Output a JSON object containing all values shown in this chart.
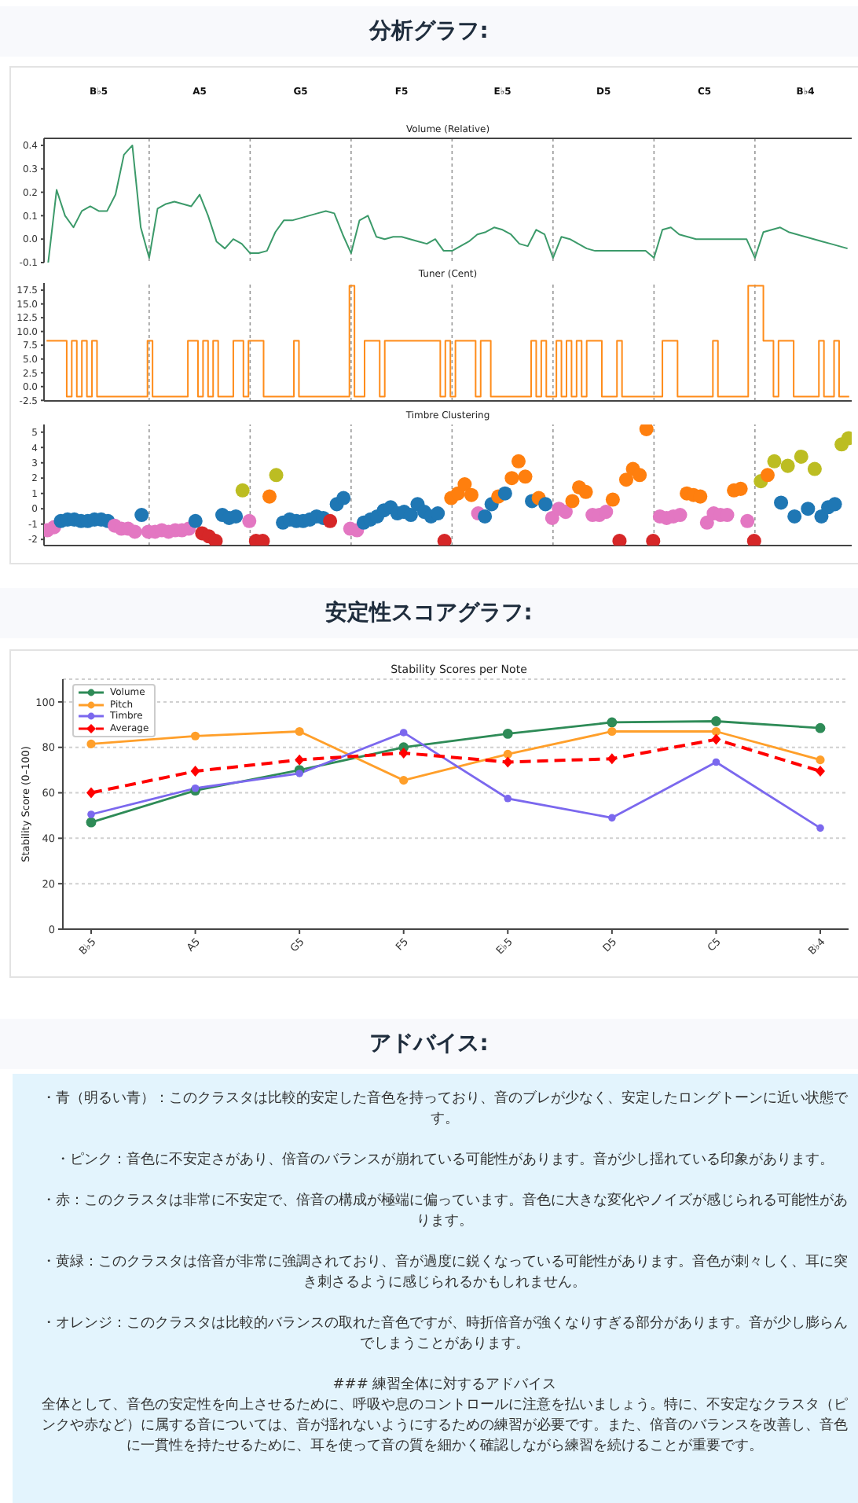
{
  "chart_data": [
    {
      "type": "line",
      "title": "Volume (Relative)",
      "annotations": [
        "分析グラフ:"
      ],
      "grid": "x",
      "categories": [
        null,
        null,
        null,
        null,
        null,
        null,
        "B♭5",
        null,
        null,
        null,
        null,
        null,
        null,
        null,
        null,
        null,
        null,
        null,
        "A5",
        null,
        null,
        null,
        null,
        null,
        null,
        null,
        null,
        null,
        null,
        null,
        "G5",
        null,
        null,
        null,
        null,
        null,
        null,
        null,
        null,
        null,
        null,
        null,
        "F5",
        null,
        null,
        null,
        null,
        null,
        null,
        null,
        null,
        null,
        null,
        null,
        "E♭5",
        null,
        null,
        null,
        null,
        null,
        null,
        null,
        null,
        null,
        null,
        null,
        "D5",
        null,
        null,
        null,
        null,
        null,
        null,
        null,
        null,
        null,
        null,
        null,
        "C5",
        null,
        null,
        null,
        null,
        null,
        null,
        null,
        null,
        null,
        null,
        null,
        "B♭4",
        null,
        null,
        null,
        null,
        null
      ],
      "ylim": [
        -0.1,
        0.43
      ],
      "yticks": [
        {
          "value": -0.1,
          "label": "-0.1"
        },
        {
          "value": 0,
          "label": "0.0"
        },
        {
          "value": 0.1,
          "label": "0.1"
        },
        {
          "value": 0.2,
          "label": "0.2"
        },
        {
          "value": 0.3,
          "label": "0.3"
        },
        {
          "value": 0.4,
          "label": "0.4"
        }
      ],
      "series": [
        {
          "color": "#3c9a6a",
          "values": [
            -0.1,
            0.21,
            0.1,
            0.05,
            0.12,
            0.14,
            0.12,
            0.12,
            0.19,
            0.36,
            0.4,
            0.05,
            -0.08,
            0.13,
            0.15,
            0.16,
            0.15,
            0.14,
            0.19,
            0.1,
            -0.01,
            -0.04,
            0.0,
            -0.02,
            -0.06,
            -0.06,
            -0.05,
            0.03,
            0.08,
            0.08,
            0.09,
            0.1,
            0.11,
            0.12,
            0.11,
            0.02,
            -0.06,
            0.08,
            0.1,
            0.01,
            0.0,
            0.01,
            0.01,
            0.0,
            -0.01,
            -0.02,
            0.0,
            -0.05,
            -0.05,
            -0.03,
            -0.01,
            0.02,
            0.03,
            0.05,
            0.04,
            0.02,
            -0.02,
            -0.03,
            0.04,
            0.02,
            -0.08,
            0.01,
            0.0,
            -0.02,
            -0.04,
            -0.05,
            -0.05,
            -0.05,
            -0.05,
            -0.05,
            -0.05,
            -0.05,
            -0.08,
            0.04,
            0.05,
            0.02,
            0.01,
            0.0,
            0.0,
            0.0,
            0.0,
            0.0,
            0.0,
            0.0,
            -0.08,
            0.03,
            0.04,
            0.05,
            0.03,
            0.02,
            0.01,
            0.0,
            -0.01,
            -0.02,
            -0.03,
            -0.04
          ]
        }
      ]
    },
    {
      "type": "step",
      "title": "Tuner (Cent)",
      "grid": "x",
      "tick_labels": "y",
      "categories": [
        null,
        null,
        null,
        null,
        null,
        null,
        null,
        null,
        null,
        null,
        null,
        null,
        null,
        null,
        null,
        null,
        null,
        null,
        null,
        null,
        null,
        null,
        null,
        null,
        null,
        null,
        null,
        null,
        null,
        null,
        null,
        null,
        null,
        null,
        null,
        null,
        null,
        null,
        null,
        null,
        null,
        null,
        null,
        null,
        null,
        null,
        null,
        null,
        null,
        null,
        null,
        null,
        null,
        null,
        null,
        null,
        null,
        null,
        null,
        null,
        null,
        null,
        null,
        null,
        null,
        null,
        null,
        null,
        null,
        null,
        null,
        null,
        null,
        null,
        null,
        null,
        null,
        null,
        null,
        null,
        null,
        null,
        null,
        null,
        null,
        null,
        null,
        null,
        null,
        null,
        null,
        null,
        null,
        null,
        null,
        null,
        null,
        null,
        null,
        null,
        null,
        null,
        null,
        null,
        null,
        null,
        null,
        null,
        null,
        null,
        null,
        null,
        null,
        null,
        null,
        null,
        null,
        null,
        null,
        null,
        null,
        null,
        null,
        null,
        null,
        null,
        null,
        null,
        null,
        null,
        null,
        null,
        null,
        null,
        null,
        null,
        null,
        null,
        null,
        null,
        null,
        null,
        null,
        null,
        null,
        null,
        null,
        null,
        null,
        null,
        null,
        null,
        null,
        null,
        null,
        null,
        null,
        null,
        null,
        null
      ],
      "ylim": [
        -2.6,
        18.8
      ],
      "yticks": [
        {
          "value": -2.5,
          "label": "-2.5"
        },
        {
          "value": 0,
          "label": "0.0"
        },
        {
          "value": 2.5,
          "label": "2.5"
        },
        {
          "value": 5,
          "label": "5.0"
        },
        {
          "value": 7.5,
          "label": "7.5"
        },
        {
          "value": 10,
          "label": "10.0"
        },
        {
          "value": 12.5,
          "label": "12.5"
        },
        {
          "value": 15,
          "label": "15.0"
        },
        {
          "value": 17.5,
          "label": "17.5"
        }
      ],
      "series": [
        {
          "color": "#ff8c1a",
          "values": [
            8.3,
            8.3,
            8.3,
            8.3,
            -1.8,
            8.3,
            -1.8,
            8.3,
            -1.8,
            8.3,
            -1.8,
            -1.8,
            -1.8,
            -1.8,
            -1.8,
            -1.8,
            -1.8,
            -1.8,
            -1.8,
            -1.8,
            8.3,
            -1.8,
            -1.8,
            -1.8,
            -1.8,
            -1.8,
            -1.8,
            -1.8,
            8.3,
            8.3,
            -1.8,
            8.3,
            -1.8,
            8.3,
            -1.8,
            -1.8,
            -1.8,
            8.3,
            8.3,
            -1.8,
            8.3,
            8.3,
            8.3,
            -1.8,
            -1.8,
            -1.8,
            -1.8,
            -1.8,
            -1.8,
            8.3,
            -1.8,
            -1.8,
            -1.8,
            -1.8,
            -1.8,
            -1.8,
            -1.8,
            -1.8,
            -1.8,
            -1.8,
            18.3,
            -1.8,
            -1.8,
            8.3,
            8.3,
            8.3,
            -1.8,
            8.3,
            8.3,
            8.3,
            8.3,
            8.3,
            8.3,
            8.3,
            8.3,
            8.3,
            8.3,
            8.3,
            -1.8,
            8.3,
            -1.8,
            8.3,
            8.3,
            8.3,
            8.3,
            -1.8,
            8.3,
            8.3,
            -1.8,
            -1.8,
            -1.8,
            -1.8,
            -1.8,
            -1.8,
            -1.8,
            -1.8,
            8.3,
            -1.8,
            8.3,
            -1.8,
            -1.8,
            8.3,
            -1.8,
            8.3,
            -1.8,
            8.3,
            -1.8,
            8.3,
            8.3,
            8.3,
            -1.8,
            -1.8,
            -1.8,
            8.3,
            -1.8,
            -1.8,
            -1.8,
            -1.8,
            -1.8,
            -1.8,
            -1.8,
            -1.8,
            8.3,
            8.3,
            8.3,
            -1.8,
            -1.8,
            -1.8,
            -1.8,
            -1.8,
            -1.8,
            -1.8,
            8.3,
            -1.8,
            -1.8,
            -1.8,
            -1.8,
            -1.8,
            -1.8,
            18.3,
            18.3,
            18.3,
            8.3,
            8.3,
            -1.8,
            8.3,
            8.3,
            8.3,
            -1.8,
            -1.8,
            -1.8,
            -1.8,
            -1.8,
            8.3,
            -1.8,
            -1.8,
            8.3,
            -1.8,
            -1.8,
            -1.8
          ]
        }
      ]
    },
    {
      "type": "scatter",
      "title": "Timbre Clustering",
      "grid": "x",
      "tick_labels": "y",
      "categories": [
        null,
        null,
        null,
        null,
        null,
        null,
        null,
        null,
        null,
        null,
        null,
        null,
        null,
        null,
        null,
        null,
        null,
        null,
        null,
        null,
        null,
        null,
        null,
        null,
        null,
        null,
        null,
        null,
        null,
        null,
        null,
        null,
        null,
        null,
        null,
        null,
        null,
        null,
        null,
        null,
        null,
        null,
        null,
        null,
        null,
        null,
        null,
        null,
        null,
        null,
        null,
        null,
        null,
        null,
        null,
        null,
        null,
        null,
        null,
        null,
        null,
        null,
        null,
        null,
        null,
        null,
        null,
        null,
        null,
        null,
        null,
        null,
        null,
        null,
        null,
        null,
        null,
        null,
        null,
        null,
        null,
        null,
        null,
        null,
        null,
        null,
        null,
        null,
        null,
        null,
        null,
        null,
        null,
        null,
        null,
        null,
        null,
        null,
        null,
        null,
        null,
        null,
        null,
        null,
        null,
        null,
        null,
        null,
        null,
        null,
        null,
        null,
        null,
        null,
        null,
        null,
        null,
        null,
        null,
        null
      ],
      "ylim": [
        -2.4,
        5.5
      ],
      "yticks": [
        -2,
        -1,
        0,
        1,
        2,
        3,
        4,
        5
      ],
      "series": [
        {
          "values": [
            -1.4,
            -1.2,
            -0.8,
            -0.7,
            -0.7,
            -0.8,
            -0.8,
            -0.7,
            -0.7,
            -0.8,
            -1.1,
            -1.3,
            -1.3,
            -1.5,
            -0.4,
            -1.5,
            -1.5,
            -1.4,
            -1.5,
            -1.4,
            -1.4,
            -1.3,
            -0.8,
            -1.6,
            -1.8,
            -2.1,
            -0.4,
            -0.6,
            -0.5,
            1.2,
            -0.8,
            -2.1,
            -2.1,
            0.8,
            2.2,
            -0.9,
            -0.7,
            -0.8,
            -0.8,
            -0.7,
            -0.5,
            -0.6,
            -0.8,
            0.3,
            0.7,
            -1.3,
            -1.4,
            -0.9,
            -0.7,
            -0.5,
            -0.1,
            0.1,
            -0.3,
            -0.2,
            -0.4,
            0.3,
            -0.2,
            -0.5,
            -0.3,
            -2.1,
            0.7,
            1.0,
            1.6,
            0.9,
            -0.3,
            -0.5,
            0.3,
            0.8,
            1.0,
            2.0,
            3.1,
            2.1,
            0.5,
            0.7,
            0.3,
            -0.6,
            0.0,
            -0.2,
            0.5,
            1.4,
            1.1,
            -0.4,
            -0.4,
            -0.2,
            0.6,
            -2.1,
            1.9,
            2.6,
            2.2,
            5.2,
            -2.1,
            -0.5,
            -0.6,
            -0.5,
            -0.4,
            1.0,
            0.9,
            0.8,
            -0.9,
            -0.3,
            -0.4,
            -0.4,
            1.2,
            1.3,
            -0.8,
            -2.1,
            1.8,
            2.2,
            3.1,
            0.4,
            2.8,
            -0.5,
            3.4,
            0.0,
            2.6,
            -0.5,
            0.1,
            0.3,
            4.2,
            4.6
          ],
          "colors": [
            "#e377c2",
            "#e377c2",
            "#1f77b4",
            "#1f77b4",
            "#1f77b4",
            "#1f77b4",
            "#1f77b4",
            "#1f77b4",
            "#1f77b4",
            "#1f77b4",
            "#e377c2",
            "#e377c2",
            "#e377c2",
            "#e377c2",
            "#1f77b4",
            "#e377c2",
            "#e377c2",
            "#e377c2",
            "#e377c2",
            "#e377c2",
            "#e377c2",
            "#e377c2",
            "#1f77b4",
            "#d62728",
            "#d62728",
            "#d62728",
            "#1f77b4",
            "#1f77b4",
            "#1f77b4",
            "#bcbd22",
            "#e377c2",
            "#d62728",
            "#d62728",
            "#ff7f0e",
            "#bcbd22",
            "#1f77b4",
            "#1f77b4",
            "#1f77b4",
            "#1f77b4",
            "#1f77b4",
            "#1f77b4",
            "#1f77b4",
            "#d62728",
            "#1f77b4",
            "#1f77b4",
            "#e377c2",
            "#e377c2",
            "#1f77b4",
            "#1f77b4",
            "#1f77b4",
            "#1f77b4",
            "#1f77b4",
            "#1f77b4",
            "#1f77b4",
            "#1f77b4",
            "#1f77b4",
            "#1f77b4",
            "#1f77b4",
            "#1f77b4",
            "#d62728",
            "#ff7f0e",
            "#ff7f0e",
            "#ff7f0e",
            "#ff7f0e",
            "#e377c2",
            "#1f77b4",
            "#1f77b4",
            "#ff7f0e",
            "#1f77b4",
            "#ff7f0e",
            "#ff7f0e",
            "#ff7f0e",
            "#1f77b4",
            "#ff7f0e",
            "#1f77b4",
            "#e377c2",
            "#e377c2",
            "#e377c2",
            "#ff7f0e",
            "#ff7f0e",
            "#ff7f0e",
            "#e377c2",
            "#e377c2",
            "#e377c2",
            "#ff7f0e",
            "#d62728",
            "#ff7f0e",
            "#ff7f0e",
            "#ff7f0e",
            "#ff7f0e",
            "#d62728",
            "#e377c2",
            "#e377c2",
            "#e377c2",
            "#e377c2",
            "#ff7f0e",
            "#ff7f0e",
            "#ff7f0e",
            "#e377c2",
            "#e377c2",
            "#e377c2",
            "#e377c2",
            "#ff7f0e",
            "#ff7f0e",
            "#e377c2",
            "#d62728",
            "#bcbd22",
            "#ff7f0e",
            "#bcbd22",
            "#1f77b4",
            "#bcbd22",
            "#1f77b4",
            "#bcbd22",
            "#1f77b4",
            "#bcbd22",
            "#1f77b4",
            "#1f77b4",
            "#1f77b4",
            "#bcbd22",
            "#bcbd22"
          ]
        }
      ]
    },
    {
      "type": "line",
      "title": "Stability Scores per Note",
      "annotations": [
        "安定性スコアグラフ:"
      ],
      "ylabel": "Stability Score (0–100)",
      "categories": [
        "B♭5",
        "A5",
        "G5",
        "F5",
        "E♭5",
        "D5",
        "C5",
        "B♭4"
      ],
      "ylim": [
        0,
        110
      ],
      "yticks": [
        0,
        20,
        40,
        60,
        80,
        100
      ],
      "grid": "y",
      "legend": "top left",
      "marker": "circle",
      "series": [
        {
          "name": "Volume",
          "color": "#2e8b57",
          "values": [
            47,
            61,
            70,
            80,
            86,
            91,
            91.5,
            88.5
          ]
        },
        {
          "name": "Pitch",
          "color": "#ff9f2a",
          "values": [
            81.5,
            85,
            87,
            65.5,
            77,
            87,
            87,
            74.5
          ]
        },
        {
          "name": "Timbre",
          "color": "#7b68ee",
          "values": [
            50.5,
            62,
            68.5,
            86.5,
            57.5,
            49,
            73.5,
            44.5
          ]
        },
        {
          "name": "Average",
          "color": "#ff0000",
          "marker": "diamond",
          "line_style": "dashed",
          "values": [
            60,
            69.5,
            74.5,
            77.5,
            73.5,
            75,
            83.5,
            69.5
          ]
        }
      ]
    },
    {
      "type": "other",
      "title": "アドバイス:",
      "annotations": [
        "・青（明るい青）：このクラスタは比較的安定した音色を持っており、音のブレが少なく、安定したロングトーンに近い状態です。",
        "・ピンク：音色に不安定さがあり、倍音のバランスが崩れている可能性があります。音が少し揺れている印象があります。",
        "・赤：このクラスタは非常に不安定で、倍音の構成が極端に偏っています。音色に大きな変化やノイズが感じられる可能性があります。",
        "・黄緑：このクラスタは倍音が非常に強調されており、音が過度に鋭くなっている可能性があります。音色が刺々しく、耳に突き刺さるように感じられるかもしれません。",
        "・オレンジ：このクラスタは比較的バランスの取れた音色ですが、時折倍音が強くなりすぎる部分があります。音が少し膨らんでしまうことがあります。",
        "### 練習全体に対するアドバイス",
        "全体として、音色の安定性を向上させるために、呼吸や息のコントロールに注意を払いましょう。特に、不安定なクラスタ（ピンクや赤など）に属する音については、音が揺れないようにするための練習が必要です。また、倍音のバランスを改善し、音色に一貫性を持たせるために、耳を使って音の質を細かく確認しながら練習を続けることが重要です。"
      ]
    }
  ]
}
